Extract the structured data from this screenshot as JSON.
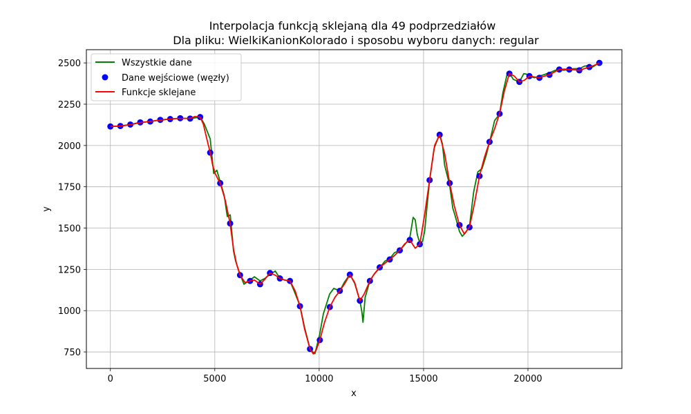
{
  "chart_data": {
    "type": "line",
    "title": "Interpolacja funkcją sklejaną dla 49 podprzedziałów",
    "subtitle": "Dla pliku: WielkiKanionKolorado i sposobu wyboru danych: regular",
    "xlabel": "x",
    "ylabel": "y",
    "xlim": [
      -1150,
      24500
    ],
    "ylim": [
      650,
      2580
    ],
    "xticks": [
      0,
      5000,
      10000,
      15000,
      20000
    ],
    "yticks": [
      750,
      1000,
      1250,
      1500,
      1750,
      2000,
      2250,
      2500
    ],
    "grid": true,
    "legend_position": "top-left",
    "legend": [
      {
        "label": "Wszystkie dane",
        "kind": "line",
        "color": "#008000"
      },
      {
        "label": "Dane wejściowe (węzły)",
        "kind": "marker",
        "color": "#0000ff"
      },
      {
        "label": "Funkcje sklejane",
        "kind": "line",
        "color": "#ff0000"
      }
    ],
    "series": [
      {
        "name": "Wszystkie dane",
        "color": "#008000",
        "x": [
          0,
          478,
          955,
          1430,
          1910,
          2390,
          2865,
          3345,
          3820,
          4300,
          4500,
          4780,
          4950,
          5100,
          5260,
          5450,
          5600,
          5740,
          5900,
          6000,
          6210,
          6400,
          6690,
          6900,
          7170,
          7400,
          7650,
          7900,
          8120,
          8350,
          8600,
          8800,
          9080,
          9300,
          9560,
          9700,
          9800,
          10030,
          10200,
          10500,
          10700,
          10990,
          11200,
          11470,
          11700,
          11950,
          12050,
          12100,
          12200,
          12430,
          12600,
          12900,
          13150,
          13380,
          13600,
          13860,
          14100,
          14340,
          14500,
          14600,
          14700,
          14820,
          14950,
          15050,
          15290,
          15500,
          15770,
          15900,
          16010,
          16250,
          16400,
          16500,
          16720,
          16850,
          17000,
          17200,
          17400,
          17600,
          17800,
          18000,
          18200,
          18400,
          18640,
          18800,
          19000,
          19110,
          19300,
          19590,
          19800,
          20000,
          20070,
          20300,
          20550,
          20800,
          21030,
          21300,
          21500,
          21700,
          22000,
          22200,
          22460,
          22700,
          22950,
          23100,
          23400
        ],
        "y": [
          2115,
          2118,
          2127,
          2140,
          2145,
          2155,
          2160,
          2165,
          2163,
          2172,
          2130,
          2040,
          1830,
          1850,
          1780,
          1700,
          1570,
          1580,
          1360,
          1300,
          1220,
          1160,
          1185,
          1205,
          1180,
          1195,
          1220,
          1240,
          1195,
          1185,
          1180,
          1120,
          1030,
          900,
          770,
          750,
          740,
          860,
          980,
          1100,
          1135,
          1120,
          1170,
          1220,
          1165,
          1060,
          990,
          930,
          1080,
          1180,
          1215,
          1260,
          1300,
          1315,
          1350,
          1365,
          1400,
          1440,
          1565,
          1550,
          1460,
          1410,
          1420,
          1480,
          1790,
          1980,
          2070,
          2010,
          1880,
          1760,
          1620,
          1580,
          1480,
          1450,
          1470,
          1510,
          1720,
          1840,
          1860,
          1940,
          2040,
          2150,
          2190,
          2320,
          2430,
          2440,
          2400,
          2385,
          2435,
          2430,
          2420,
          2410,
          2420,
          2430,
          2440,
          2455,
          2460,
          2455,
          2460,
          2465,
          2465,
          2480,
          2485,
          2475,
          2500
        ]
      },
      {
        "name": "Dane wejściowe (węzły)",
        "color": "#0000ff",
        "marker": "circle",
        "x": [
          0,
          478,
          955,
          1430,
          1910,
          2390,
          2865,
          3345,
          3820,
          4300,
          4780,
          5260,
          5735,
          6210,
          6690,
          7170,
          7645,
          8120,
          8600,
          9080,
          9560,
          10030,
          10510,
          10990,
          11470,
          11950,
          12430,
          12900,
          13380,
          13860,
          14340,
          14820,
          15290,
          15770,
          16250,
          16720,
          17200,
          17680,
          18160,
          18640,
          19110,
          19590,
          20070,
          20550,
          21030,
          21500,
          21980,
          22460,
          22940,
          23420
        ],
        "y": [
          2115,
          2118,
          2127,
          2140,
          2145,
          2155,
          2160,
          2165,
          2163,
          2172,
          1957,
          1772,
          1528,
          1215,
          1180,
          1160,
          1228,
          1195,
          1180,
          1027,
          768,
          822,
          1022,
          1120,
          1218,
          1060,
          1180,
          1262,
          1310,
          1365,
          1428,
          1402,
          1790,
          2065,
          1772,
          1518,
          1505,
          1815,
          2022,
          2192,
          2435,
          2385,
          2420,
          2410,
          2428,
          2460,
          2460,
          2455,
          2475,
          2500
        ]
      },
      {
        "name": "Funkcje sklejane",
        "color": "#ff0000",
        "x": [
          0,
          478,
          955,
          1430,
          1910,
          2390,
          2865,
          3345,
          3820,
          4050,
          4300,
          4450,
          4620,
          4780,
          4900,
          5020,
          5140,
          5260,
          5500,
          5735,
          5900,
          6050,
          6210,
          6450,
          6690,
          6900,
          7170,
          7400,
          7645,
          7900,
          8120,
          8350,
          8600,
          8850,
          9080,
          9300,
          9560,
          9720,
          9850,
          10030,
          10260,
          10510,
          10750,
          10990,
          11230,
          11470,
          11700,
          11950,
          12150,
          12430,
          12650,
          12900,
          13130,
          13380,
          13620,
          13860,
          14100,
          14340,
          14600,
          14820,
          15050,
          15290,
          15530,
          15770,
          16010,
          16250,
          16480,
          16720,
          16950,
          17200,
          17440,
          17680,
          17920,
          18160,
          18400,
          18640,
          18870,
          19110,
          19350,
          19590,
          19830,
          20070,
          20310,
          20550,
          20790,
          21030,
          21270,
          21500,
          21740,
          21980,
          22220,
          22460,
          22700,
          22940,
          23180,
          23420
        ],
        "y": [
          2115,
          2117,
          2126,
          2138,
          2146,
          2153,
          2160,
          2164,
          2164,
          2175,
          2172,
          2130,
          2040,
          1957,
          1880,
          1830,
          1800,
          1772,
          1670,
          1528,
          1370,
          1280,
          1215,
          1170,
          1180,
          1185,
          1160,
          1190,
          1228,
          1215,
          1195,
          1185,
          1180,
          1120,
          1027,
          890,
          768,
          738,
          760,
          822,
          930,
          1022,
          1080,
          1120,
          1165,
          1218,
          1170,
          1060,
          1100,
          1180,
          1225,
          1262,
          1285,
          1310,
          1335,
          1365,
          1405,
          1428,
          1378,
          1402,
          1580,
          1790,
          2000,
          2065,
          1950,
          1772,
          1630,
          1518,
          1465,
          1505,
          1650,
          1815,
          1930,
          2022,
          2100,
          2192,
          2330,
          2435,
          2420,
          2385,
          2395,
          2420,
          2415,
          2410,
          2420,
          2428,
          2445,
          2460,
          2462,
          2460,
          2458,
          2455,
          2465,
          2475,
          2485,
          2500
        ]
      }
    ]
  }
}
